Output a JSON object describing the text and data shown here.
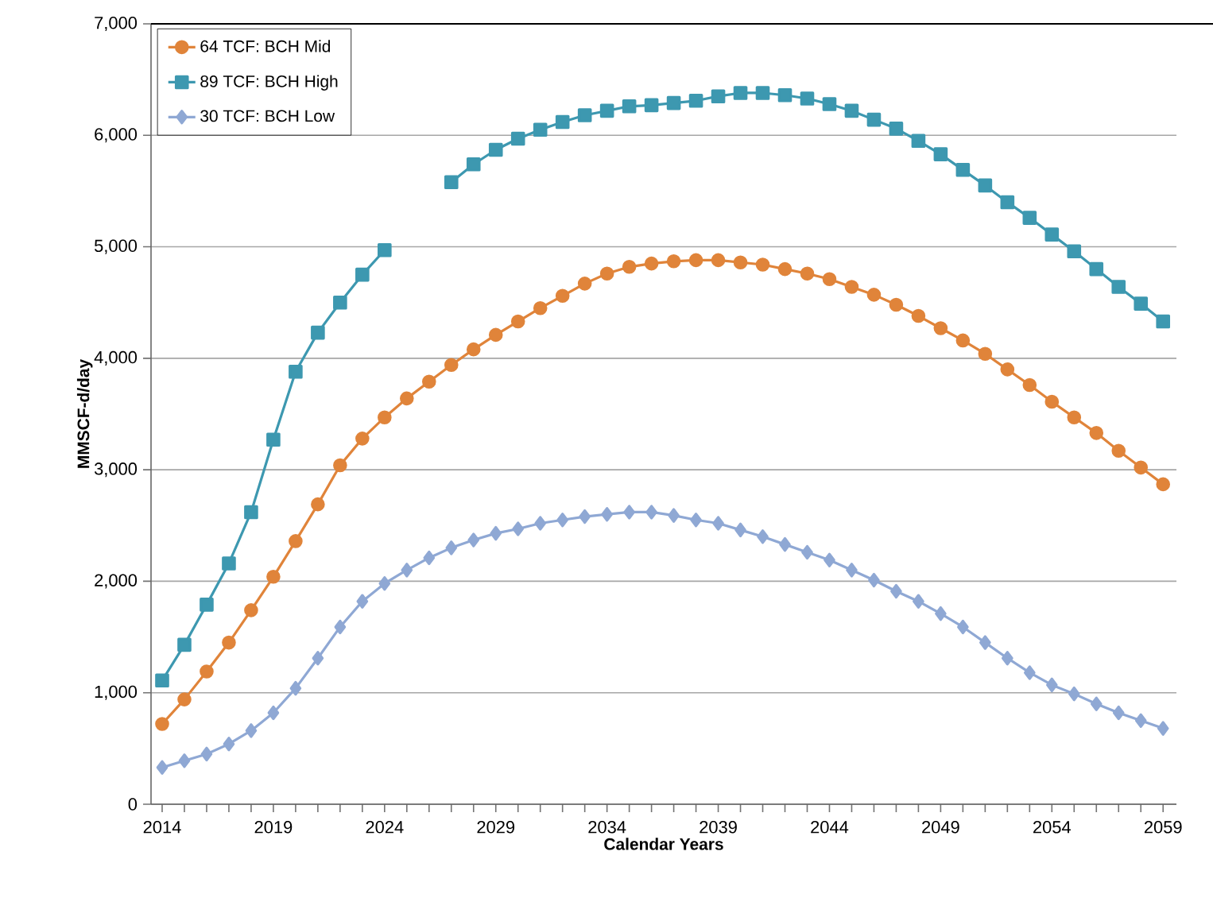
{
  "chart_data": {
    "type": "line",
    "xlabel": "Calendar Years",
    "ylabel": "MMSCF-d/day",
    "x": [
      2014,
      2015,
      2016,
      2017,
      2018,
      2019,
      2020,
      2021,
      2022,
      2023,
      2024,
      2025,
      2026,
      2027,
      2028,
      2029,
      2030,
      2031,
      2032,
      2033,
      2034,
      2035,
      2036,
      2037,
      2038,
      2039,
      2040,
      2041,
      2042,
      2043,
      2044,
      2045,
      2046,
      2047,
      2048,
      2049,
      2050,
      2051,
      2052,
      2053,
      2054,
      2055,
      2056,
      2057,
      2058,
      2059
    ],
    "series": [
      {
        "name": "64 TCF: BCH Mid",
        "color": "#e0843a",
        "marker": "circle",
        "values": [
          720,
          940,
          1190,
          1450,
          1740,
          2040,
          2360,
          2690,
          3040,
          3280,
          3470,
          3640,
          3790,
          3940,
          4080,
          4210,
          4330,
          4450,
          4560,
          4670,
          4760,
          4820,
          4850,
          4870,
          4880,
          4880,
          4860,
          4840,
          4800,
          4760,
          4710,
          4640,
          4570,
          4480,
          4380,
          4270,
          4160,
          4040,
          3900,
          3760,
          3610,
          3470,
          3330,
          3170,
          3020,
          2870
        ]
      },
      {
        "name": "89 TCF: BCH High",
        "color": "#3d98b0",
        "marker": "square",
        "values": [
          1110,
          1430,
          1790,
          2160,
          2620,
          3270,
          3880,
          4230,
          4500,
          4750,
          4970,
          null,
          null,
          5580,
          5740,
          5870,
          5970,
          6050,
          6120,
          6180,
          6220,
          6260,
          6270,
          6290,
          6310,
          6350,
          6380,
          6380,
          6360,
          6330,
          6280,
          6220,
          6140,
          6060,
          5950,
          5830,
          5690,
          5550,
          5400,
          5260,
          5110,
          4960,
          4800,
          4640,
          4490,
          4330
        ]
      },
      {
        "name": "30 TCF: BCH Low",
        "color": "#8fa8d4",
        "marker": "diamond",
        "values": [
          330,
          390,
          450,
          540,
          660,
          820,
          1040,
          1310,
          1590,
          1820,
          1980,
          2100,
          2210,
          2300,
          2370,
          2430,
          2470,
          2520,
          2550,
          2580,
          2600,
          2620,
          2620,
          2590,
          2550,
          2520,
          2460,
          2400,
          2330,
          2260,
          2190,
          2100,
          2010,
          1910,
          1820,
          1710,
          1590,
          1450,
          1310,
          1180,
          1070,
          990,
          900,
          820,
          750,
          680
        ]
      }
    ],
    "xlim": [
      2013.5,
      2059.6
    ],
    "xticks": [
      2014,
      2019,
      2024,
      2029,
      2034,
      2039,
      2044,
      2049,
      2054,
      2059
    ],
    "ylim": [
      0,
      7000
    ],
    "yticks": [
      0,
      {
        "value": 1000,
        "label": "1,000"
      },
      {
        "value": 2000,
        "label": "2,000"
      },
      {
        "value": 3000,
        "label": "3,000"
      },
      {
        "value": 4000,
        "label": "4,000"
      },
      {
        "value": 5000,
        "label": "5,000"
      },
      {
        "value": 6000,
        "label": "6,000"
      },
      {
        "value": 7000,
        "label": "7,000"
      }
    ],
    "grid": "y",
    "legend": "top left"
  }
}
